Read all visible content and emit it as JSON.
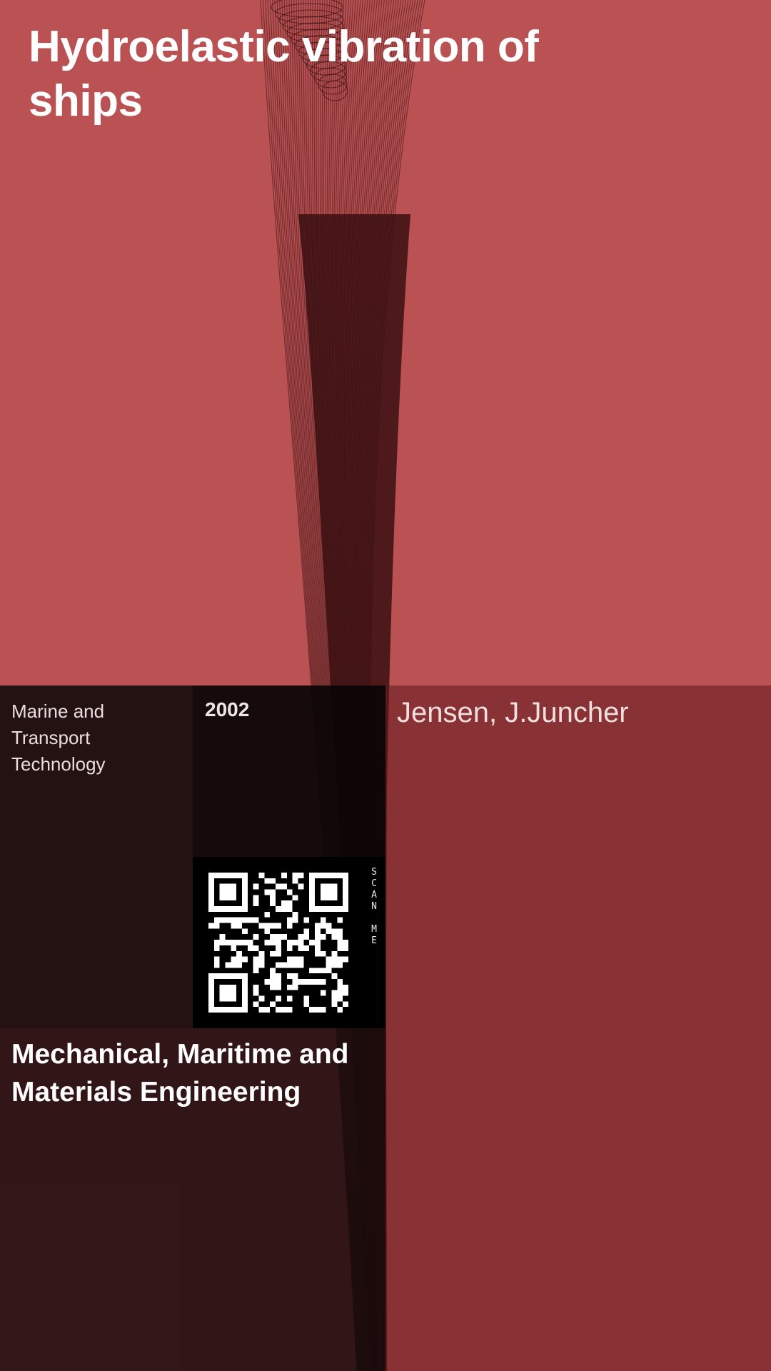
{
  "book": {
    "title": "Hydroelastic vibration of ships",
    "department": "Marine and Transport Technology",
    "year": "2002",
    "author": "Jensen, J.Juncher",
    "faculty": "Mechanical, Maritime and Materials Engineering",
    "scan_label": "SCAN ME"
  },
  "colors": {
    "background": "#ba5153",
    "artwork_line": "#2a0a0a",
    "dark_overlay": "#140a0a",
    "right_overlay": "#5f191e"
  },
  "icons": {
    "qr": "qr-code-icon",
    "artwork": "wave-line-artwork"
  }
}
